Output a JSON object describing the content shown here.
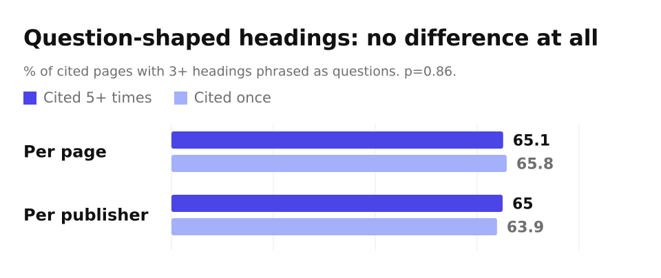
{
  "chart_data": {
    "type": "bar",
    "orientation": "horizontal",
    "title": "Question-shaped headings: no difference at all",
    "subtitle": "% of cited pages with 3+ headings phrased as questions. p=0.86.",
    "categories": [
      "Per page",
      "Per publisher"
    ],
    "series": [
      {
        "name": "Cited 5+ times",
        "color": "#4b44e6",
        "label_color": "#111111",
        "values": [
          65.1,
          65
        ],
        "labels": [
          "65.1",
          "65"
        ]
      },
      {
        "name": "Cited once",
        "color": "#a5b0fb",
        "label_color": "#6f6f6f",
        "values": [
          65.8,
          63.9
        ],
        "labels": [
          "65.8",
          "63.9"
        ]
      }
    ],
    "xlim": [
      0,
      80
    ],
    "xticks": [
      0,
      20,
      40,
      60,
      80
    ],
    "grid": true,
    "legend_position": "top-left",
    "xlabel": "",
    "ylabel": ""
  }
}
